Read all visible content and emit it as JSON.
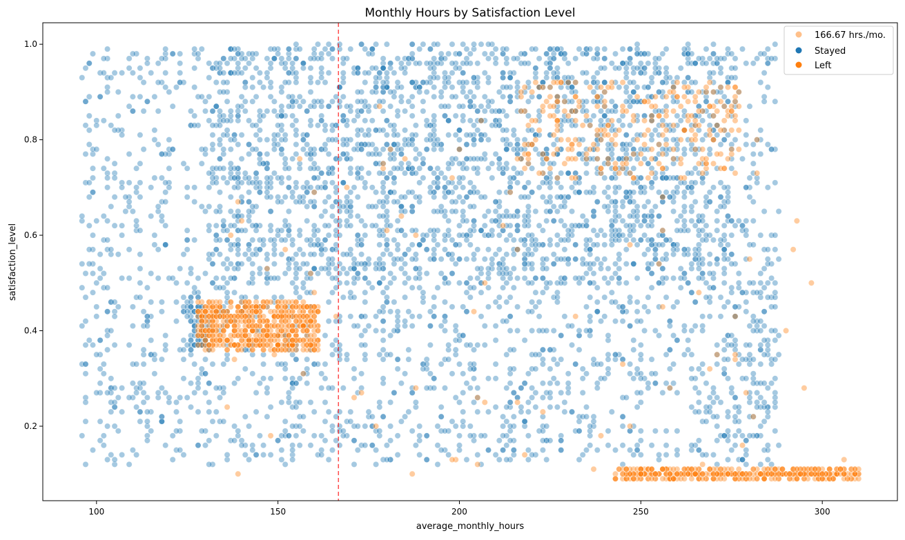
{
  "chart_data": {
    "type": "scatter",
    "title": "Monthly Hours by Satisfaction Level",
    "xlabel": "average_monthly_hours",
    "ylabel": "satisfaction_level",
    "xlim": [
      85.2,
      320.7
    ],
    "ylim": [
      0.044,
      1.045
    ],
    "xticks": [
      100,
      150,
      200,
      250,
      300
    ],
    "xtick_labels": [
      "100",
      "150",
      "200",
      "250",
      "300"
    ],
    "yticks": [
      0.2,
      0.4,
      0.6,
      0.8,
      1.0
    ],
    "ytick_labels": [
      "0.2",
      "0.4",
      "0.6",
      "0.8",
      "1.0"
    ],
    "grid": false,
    "reference_line": {
      "x": 166.67,
      "label": "166.67 hrs./mo.",
      "color": "#ff0000",
      "style": "dashed"
    },
    "legend": {
      "placement": "top-right",
      "entries": [
        {
          "label": "166.67 hrs./mo.",
          "color": "#ffc08a"
        },
        {
          "label": "Stayed",
          "color": "#1f77b4"
        },
        {
          "label": "Left",
          "color": "#ff7f0e"
        }
      ]
    },
    "series": [
      {
        "name": "Stayed",
        "color": "#1f77b4",
        "alpha": 0.4,
        "clusters": [
          {
            "x": [
              131,
              275
            ],
            "y": [
              0.49,
              1.0
            ],
            "count": 2600,
            "seed": 11
          },
          {
            "x": [
              128,
              287
            ],
            "y": [
              0.12,
              0.48
            ],
            "count": 950,
            "seed": 12
          },
          {
            "x": [
              96,
              130
            ],
            "y": [
              0.12,
              1.0
            ],
            "count": 420,
            "seed": 13
          },
          {
            "x": [
              275,
              288
            ],
            "y": [
              0.12,
              1.0
            ],
            "count": 160,
            "seed": 14
          },
          {
            "x": [
              125,
              131
            ],
            "y": [
              0.36,
              0.46
            ],
            "count": 60,
            "seed": 15
          }
        ]
      },
      {
        "name": "Left",
        "color": "#ff7f0e",
        "alpha": 0.4,
        "clusters": [
          {
            "x": [
              128,
              161
            ],
            "y": [
              0.36,
              0.46
            ],
            "count": 620,
            "seed": 21
          },
          {
            "x": [
              243,
              310
            ],
            "y": [
              0.09,
              0.11
            ],
            "count": 420,
            "seed": 22
          },
          {
            "x": [
              216,
              277
            ],
            "y": [
              0.72,
              0.92
            ],
            "count": 260,
            "seed": 23
          },
          {
            "x": [
              130,
              310
            ],
            "y": [
              0.09,
              0.92
            ],
            "count": 90,
            "seed": 24
          }
        ]
      }
    ]
  }
}
